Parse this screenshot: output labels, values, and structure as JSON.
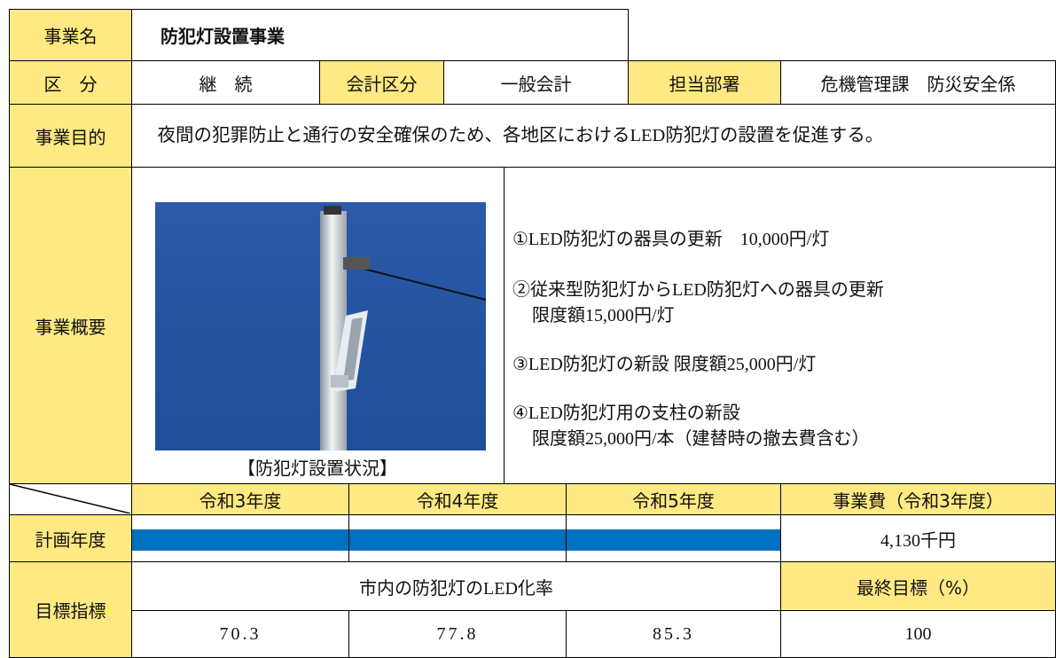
{
  "header": {
    "name_label": "事業名",
    "name": "防犯灯設置事業"
  },
  "info": {
    "category_label": "区　分",
    "category": "継　続",
    "account_label": "会計区分",
    "account": "一般会計",
    "dept_label": "担当部署",
    "dept": "危機管理課　防災安全係"
  },
  "purpose": {
    "label": "事業目的",
    "text": "夜間の犯罪防止と通行の安全確保のため、各地区におけるLED防犯灯の設置を促進する。"
  },
  "overview": {
    "label": "事業概要",
    "photo_caption": "【防犯灯設置状況】",
    "items": [
      {
        "lines": [
          "①LED防犯灯の器具の更新　10,000円/灯"
        ]
      },
      {
        "lines": [
          "②従来型防犯灯からLED防犯灯への器具の更新",
          "限度額15,000円/灯"
        ]
      },
      {
        "lines": [
          "③LED防犯灯の新設 限度額25,000円/灯"
        ]
      },
      {
        "lines": [
          "④LED防犯灯用の支柱の新設",
          "限度額25,000円/本（建替時の撤去費含む）"
        ]
      }
    ]
  },
  "schedule": {
    "years": [
      "令和3年度",
      "令和4年度",
      "令和5年度"
    ],
    "cost_label": "事業費（令和3年度）",
    "plan_label": "計画年度",
    "cost": "4,130千円"
  },
  "target": {
    "label": "目標指標",
    "indicator": "市内の防犯灯のLED化率",
    "final_label": "最終目標（%）",
    "values": [
      "70.3",
      "77.8",
      "85.3"
    ],
    "final": "100"
  }
}
